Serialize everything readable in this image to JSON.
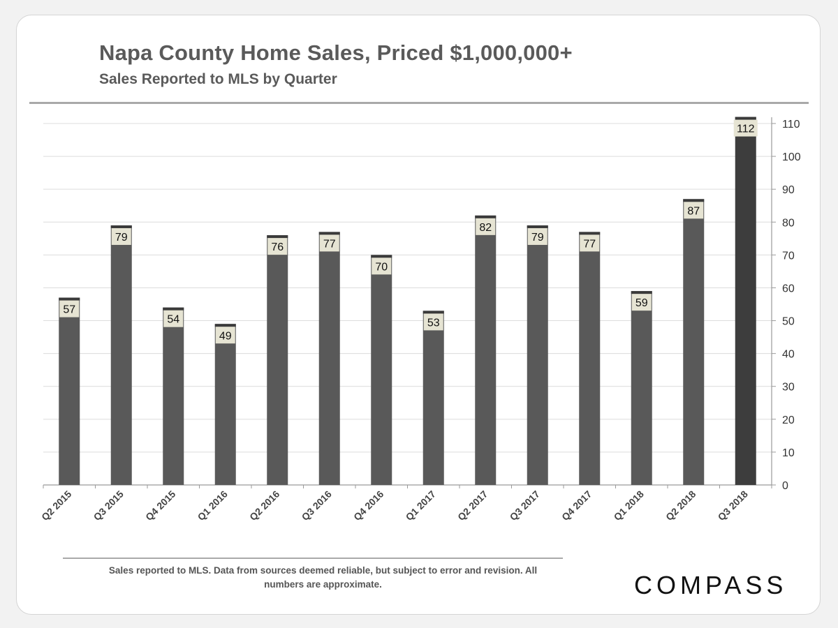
{
  "header": {
    "title": "Napa County Home Sales, Priced $1,000,000+",
    "subtitle": "Sales Reported to MLS by Quarter"
  },
  "footer": {
    "footnote": "Sales reported to MLS. Data from sources deemed reliable, but subject to error and revision. All numbers are approximate.",
    "logo": "COMPASS"
  },
  "colors": {
    "bar": "#595959",
    "bar_highlight": "#3d3d3d",
    "bar_cap": "#3a3a3a",
    "label_bg": "#e6e4d3",
    "grid": "#dcdcdc",
    "axis": "#9a9a9a",
    "text": "#333333"
  },
  "chart_data": {
    "type": "bar",
    "title": "Napa County Home Sales, Priced $1,000,000+",
    "subtitle": "Sales Reported to MLS by Quarter",
    "categories": [
      "Q2 2015",
      "Q3 2015",
      "Q4 2015",
      "Q1 2016",
      "Q2 2016",
      "Q3 2016",
      "Q4 2016",
      "Q1 2017",
      "Q2 2017",
      "Q3 2017",
      "Q4 2017",
      "Q1 2018",
      "Q2 2018",
      "Q3 2018"
    ],
    "values": [
      57,
      79,
      54,
      49,
      76,
      77,
      70,
      53,
      82,
      79,
      77,
      59,
      87,
      112
    ],
    "highlight_index": 13,
    "xlabel": "",
    "ylabel": "",
    "ylim": [
      0,
      110
    ],
    "yticks": [
      0,
      10,
      20,
      30,
      40,
      50,
      60,
      70,
      80,
      90,
      100,
      110
    ],
    "y_axis_side": "right",
    "grid": true,
    "data_labels": true
  }
}
